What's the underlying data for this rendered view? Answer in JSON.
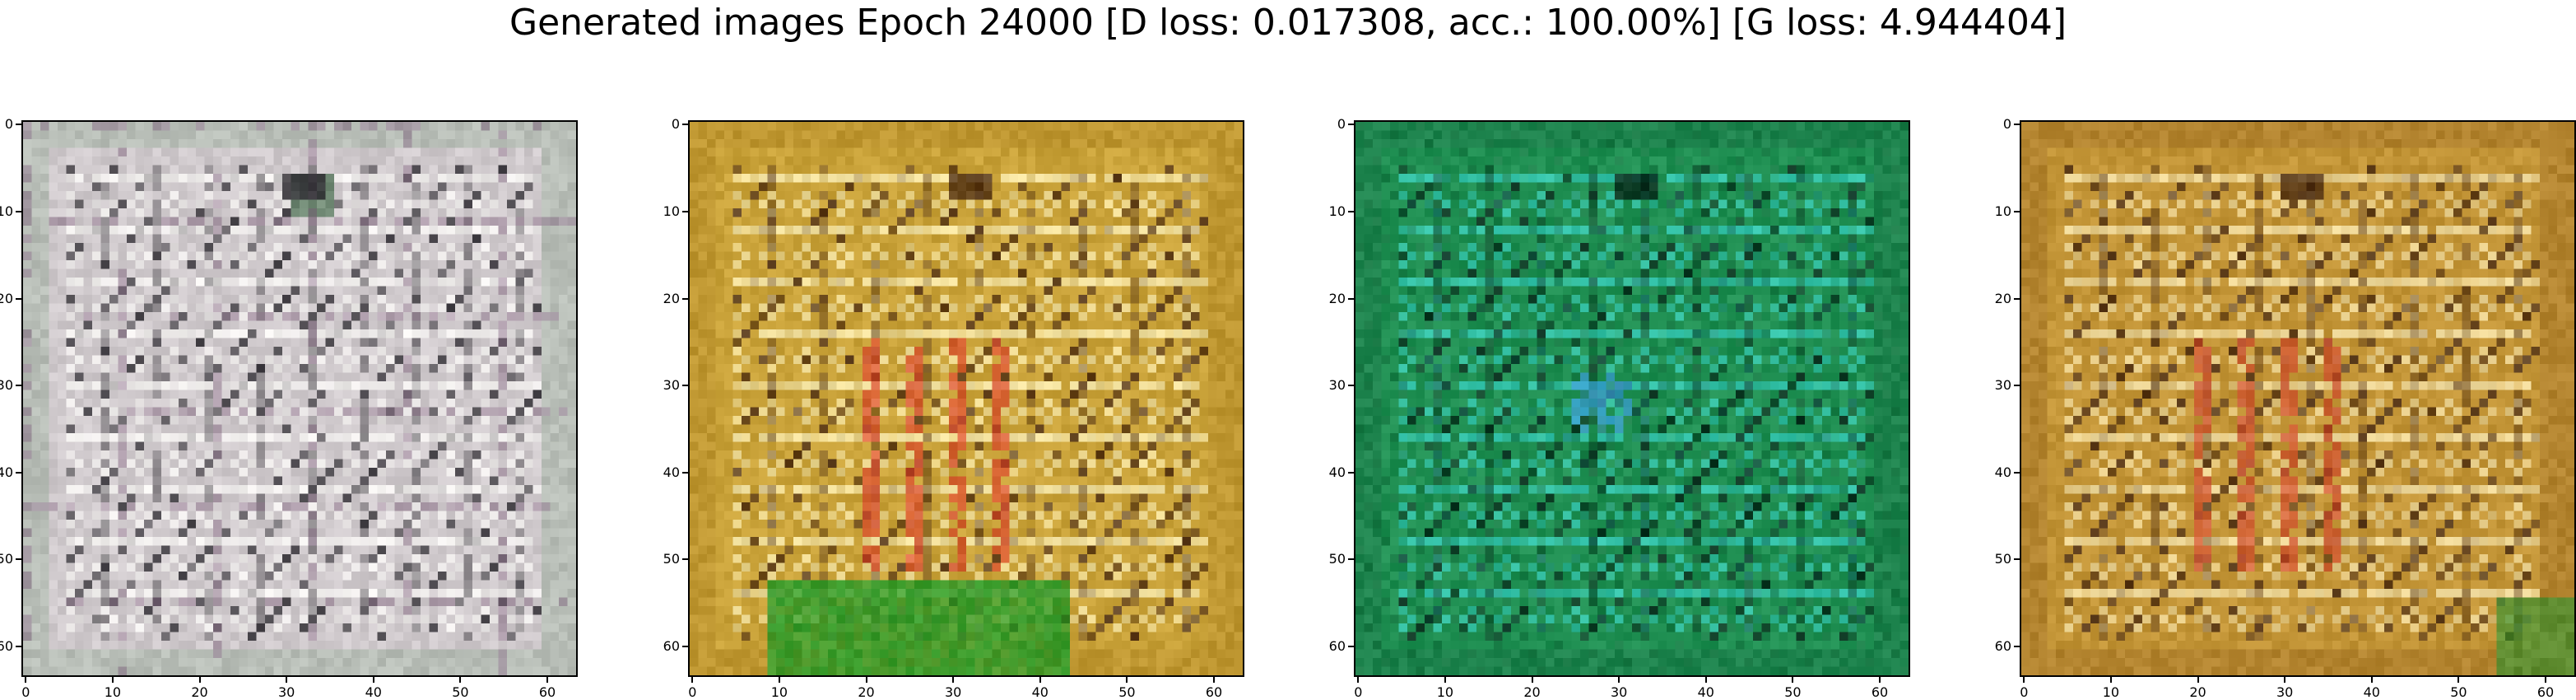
{
  "figure": {
    "suptitle": "Generated images Epoch 24000 [D loss: 0.017308, acc.: 100.00%] [G loss: 4.944404]"
  },
  "chart_data": [
    {
      "type": "heatmap",
      "title": "",
      "xlabel": "",
      "ylabel": "",
      "xlim": [
        -0.5,
        63.5
      ],
      "ylim": [
        63.5,
        -0.5
      ],
      "xticks": [
        0,
        10,
        20,
        30,
        40,
        50,
        60
      ],
      "yticks": [
        0,
        10,
        20,
        30,
        40,
        50,
        60
      ],
      "grid": false,
      "palette": {
        "base": "#cfc9cc",
        "grid_light": "#f3f1ef",
        "grid_dark": "#333036",
        "accent1": "#5a7a5f",
        "accent2": "#8a6f88",
        "frame": "#a9b6a9"
      }
    },
    {
      "type": "heatmap",
      "title": "",
      "xlabel": "",
      "ylabel": "",
      "xlim": [
        -0.5,
        63.5
      ],
      "ylim": [
        63.5,
        -0.5
      ],
      "xticks": [
        0,
        10,
        20,
        30,
        40,
        50,
        60
      ],
      "yticks": [
        0,
        10,
        20,
        30,
        40,
        50,
        60
      ],
      "grid": false,
      "palette": {
        "base": "#c9a239",
        "grid_light": "#f5e6a8",
        "grid_dark": "#4a2a10",
        "accent1": "#d9452b",
        "accent2": "#2f9b2a",
        "frame": "#b88f2c"
      }
    },
    {
      "type": "heatmap",
      "title": "",
      "xlabel": "",
      "ylabel": "",
      "xlim": [
        -0.5,
        63.5
      ],
      "ylim": [
        63.5,
        -0.5
      ],
      "xticks": [
        0,
        10,
        20,
        30,
        40,
        50,
        60
      ],
      "yticks": [
        0,
        10,
        20,
        30,
        40,
        50,
        60
      ],
      "grid": false,
      "palette": {
        "base": "#1f8f52",
        "grid_light": "#36c7b0",
        "grid_dark": "#0b2a1c",
        "accent1": "#3a9bd8",
        "accent2": "#16703f",
        "frame": "#1b7b4a"
      }
    },
    {
      "type": "heatmap",
      "title": "",
      "xlabel": "",
      "ylabel": "",
      "xlim": [
        -0.5,
        63.5
      ],
      "ylim": [
        63.5,
        -0.5
      ],
      "xticks": [
        0,
        10,
        20,
        30,
        40,
        50,
        60
      ],
      "yticks": [
        0,
        10,
        20,
        30,
        40,
        50,
        60
      ],
      "grid": false,
      "palette": {
        "base": "#c29436",
        "grid_light": "#f0dca0",
        "grid_dark": "#4b2c12",
        "accent1": "#cf4a2c",
        "accent2": "#3b8f30",
        "frame": "#a97a2a"
      }
    }
  ]
}
